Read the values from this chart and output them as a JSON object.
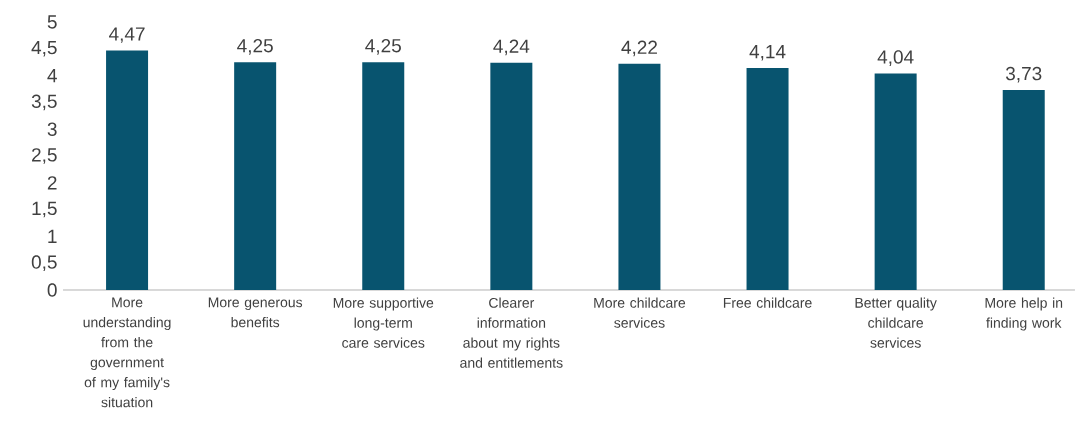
{
  "chart_data": {
    "type": "bar",
    "categories": [
      "More understanding from the government of my family's situation",
      "More generous benefits",
      "More supportive long-term care services",
      "Clearer information about my rights and entitlements",
      "More childcare services",
      "Free childcare",
      "Better quality childcare services",
      "More help in finding work"
    ],
    "values": [
      4.47,
      4.25,
      4.25,
      4.24,
      4.22,
      4.14,
      4.04,
      3.73
    ],
    "value_labels": [
      "4,47",
      "4,25",
      "4,25",
      "4,24",
      "4,22",
      "4,14",
      "4,04",
      "3,73"
    ],
    "color": "#08546f",
    "ylim": [
      0,
      5
    ],
    "yticks": [
      0,
      {
        "value": 0.5,
        "label": "0,5"
      },
      1,
      {
        "value": 1.5,
        "label": "1,5"
      },
      2,
      {
        "value": 2.5,
        "label": "2,5"
      },
      3,
      {
        "value": 3.5,
        "label": "3,5"
      },
      4,
      {
        "value": 4.5,
        "label": "4,5"
      },
      5
    ]
  }
}
